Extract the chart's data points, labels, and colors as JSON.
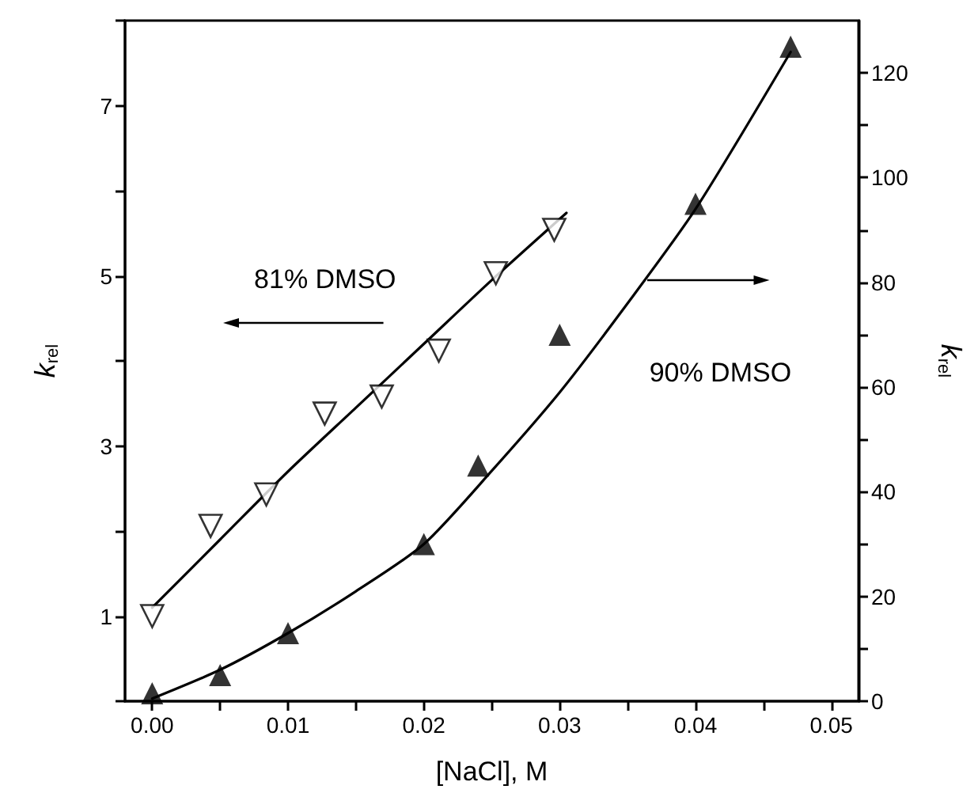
{
  "chart_data": {
    "type": "scatter",
    "xlabel": "[NaCl], M",
    "ylabel": "k$_{rel}$",
    "y2label": "k$_{rel}$",
    "xlim": [
      -0.002,
      0.052
    ],
    "xticks": [
      {
        "value": 0,
        "label": "0.00"
      },
      {
        "value": 0.005,
        "label": null
      },
      {
        "value": 0.01,
        "label": "0.01"
      },
      {
        "value": 0.015,
        "label": null
      },
      {
        "value": 0.02,
        "label": "0.02"
      },
      {
        "value": 0.025,
        "label": null
      },
      {
        "value": 0.03,
        "label": "0.03"
      },
      {
        "value": 0.035,
        "label": null
      },
      {
        "value": 0.04,
        "label": "0.04"
      },
      {
        "value": 0.045,
        "label": null
      },
      {
        "value": 0.05,
        "label": "0.05"
      }
    ],
    "ylim": [
      0,
      8
    ],
    "yticks": [
      {
        "value": 0,
        "label": null
      },
      1,
      {
        "value": 2,
        "label": null
      },
      3,
      {
        "value": 4,
        "label": null
      },
      5,
      {
        "value": 6,
        "label": null
      },
      7,
      {
        "value": 8,
        "label": null
      }
    ],
    "y2lim": [
      0,
      130
    ],
    "y2ticks": [
      0,
      {
        "value": 10,
        "label": null
      },
      20,
      {
        "value": 30,
        "label": null
      },
      40,
      {
        "value": 50,
        "label": null
      },
      60,
      {
        "value": 70,
        "label": null
      },
      80,
      {
        "value": 90,
        "label": null
      },
      100,
      {
        "value": 110,
        "label": null
      },
      120
    ],
    "grid": false,
    "series": [
      {
        "marker": "triangle-down",
        "color": "#000000",
        "x": [
          0,
          0.0043,
          0.0084,
          0.0127,
          0.0169,
          0.0211,
          0.0253,
          0.0296
        ],
        "values": [
          1.0,
          2.06,
          2.43,
          3.38,
          3.58,
          4.12,
          5.03,
          5.54
        ]
      },
      {
        "type": "line",
        "marker": "none",
        "color": "#000000",
        "x": [
          0,
          0.005,
          0.01,
          0.015,
          0.02,
          0.025,
          0.0305
        ],
        "values": [
          1.1,
          1.9,
          2.7,
          3.45,
          4.2,
          4.95,
          5.74
        ]
      },
      {
        "axis": "y2",
        "marker": "triangle",
        "color": "#000000",
        "x": [
          0,
          0.005,
          0.01,
          0.02,
          0.024,
          0.03,
          0.04,
          0.047
        ],
        "values": [
          1.5,
          5,
          13,
          30,
          45,
          70,
          95,
          125
        ]
      },
      {
        "type": "line",
        "axis": "y2",
        "marker": "none",
        "color": "#000000",
        "x": [
          0,
          0.005,
          0.01,
          0.015,
          0.02,
          0.025,
          0.03,
          0.035,
          0.04,
          0.047
        ],
        "values": [
          0.5,
          6,
          13,
          21,
          30,
          44,
          59,
          76,
          94,
          124
        ]
      }
    ],
    "annotations": [
      "81% DMSO",
      "90% DMSO"
    ]
  }
}
